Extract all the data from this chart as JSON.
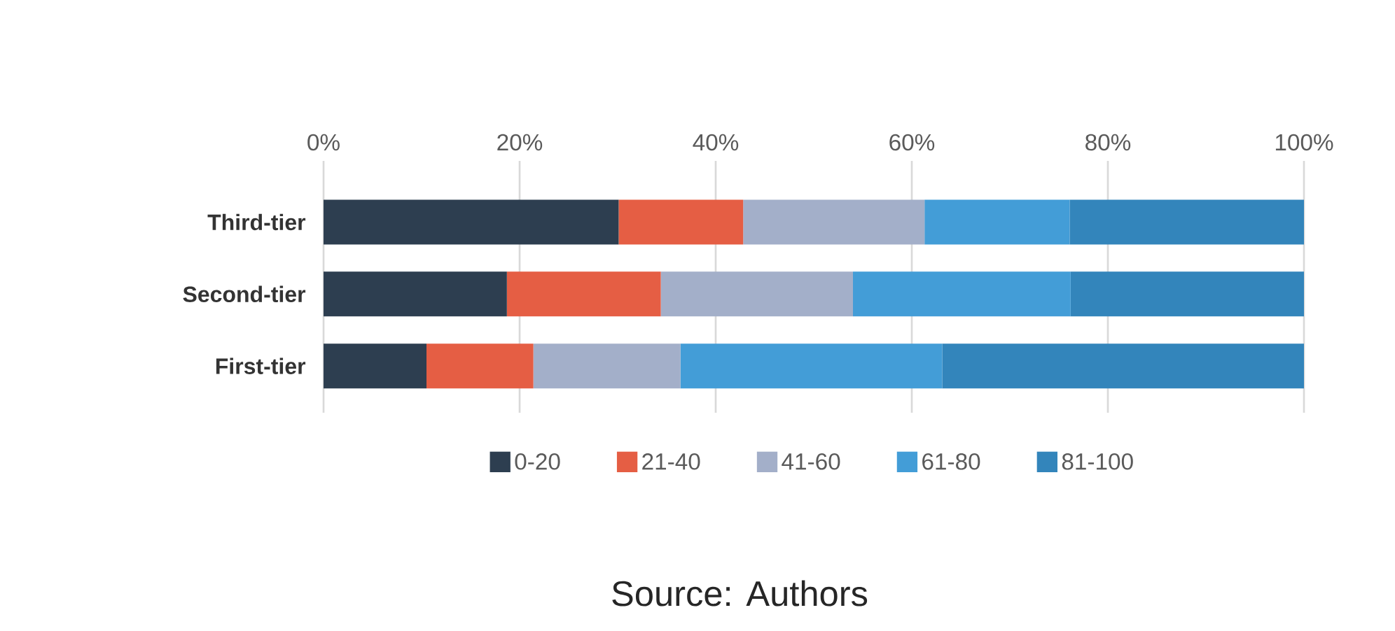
{
  "chart_data": {
    "type": "bar",
    "orientation": "horizontal",
    "stacked": true,
    "categories": [
      "Third-tier",
      "Second-tier",
      "First-tier"
    ],
    "series": [
      {
        "name": "0-20",
        "color": "#2d3e50",
        "values": [
          30.1,
          18.7,
          10.5
        ]
      },
      {
        "name": "21-40",
        "color": "#e55e44",
        "values": [
          12.7,
          15.7,
          10.9
        ]
      },
      {
        "name": "41-60",
        "color": "#a3afc9",
        "values": [
          18.5,
          19.6,
          15.0
        ]
      },
      {
        "name": "61-80",
        "color": "#439dd7",
        "values": [
          14.8,
          22.2,
          26.7
        ]
      },
      {
        "name": "81-100",
        "color": "#3385bb",
        "values": [
          23.9,
          23.8,
          36.9
        ]
      }
    ],
    "xlim": [
      0,
      100
    ],
    "xticks": [
      {
        "value": 0,
        "label": "0%"
      },
      {
        "value": 20,
        "label": "20%"
      },
      {
        "value": 40,
        "label": "40%"
      },
      {
        "value": 60,
        "label": "60%"
      },
      {
        "value": 80,
        "label": "80%"
      },
      {
        "value": 100,
        "label": "100%"
      }
    ],
    "grid": "x",
    "legend": "bottom",
    "annotations": [
      "Source: Authors"
    ]
  }
}
